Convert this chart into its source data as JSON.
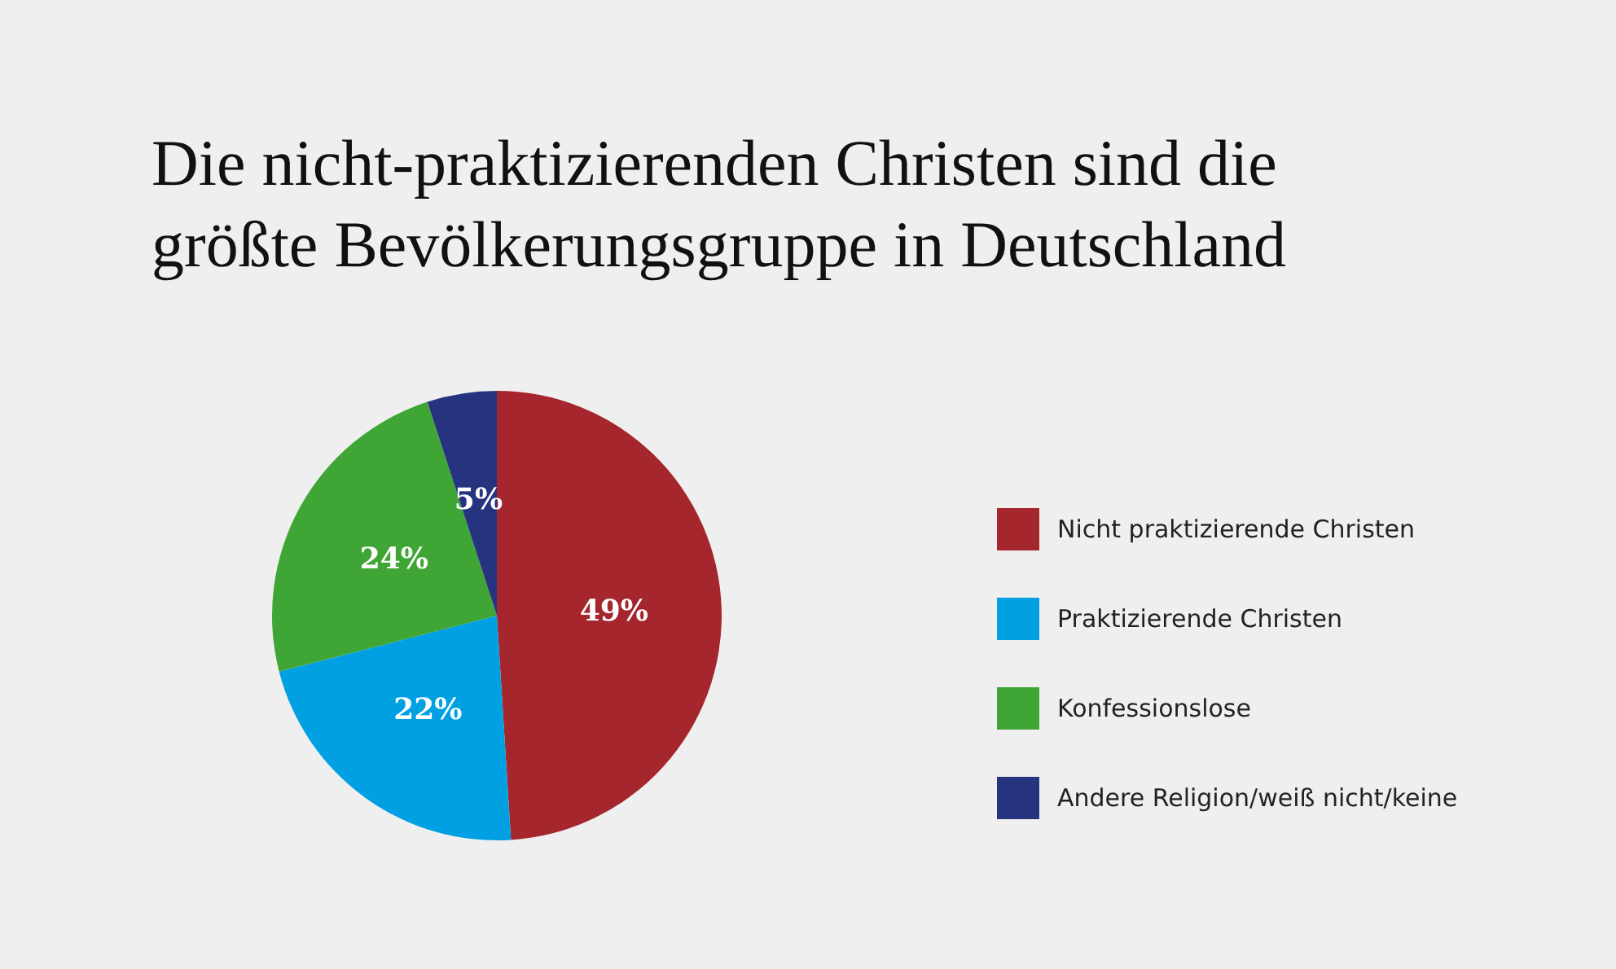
{
  "chart_data": {
    "type": "pie",
    "title": "Die nicht-praktizierenden Christen sind die\ngrößte Bevölkerungsgruppe in Deutschland",
    "categories": [
      "Nicht praktizierende Christen",
      "Praktizierende Christen",
      "Konfessionslose",
      "Andere Religion/weiß nicht/keine"
    ],
    "values": [
      49,
      22,
      24,
      5
    ],
    "colors": [
      "#a6262e",
      "#00a0e3",
      "#3fa535",
      "#263480"
    ],
    "value_labels": [
      "49%",
      "22%",
      "24%",
      "5%"
    ],
    "legend": "right"
  }
}
